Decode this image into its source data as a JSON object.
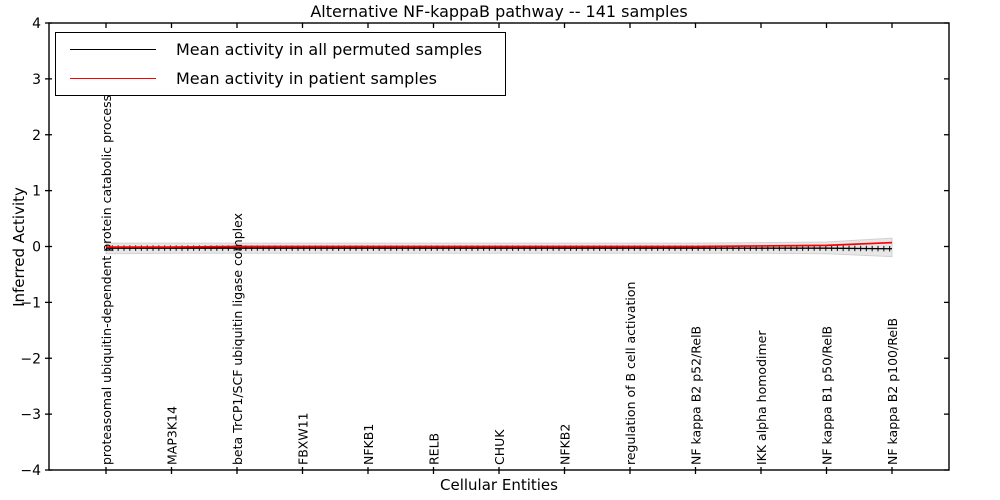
{
  "figure": {
    "background": "#ffffff",
    "axis_color": "#000000"
  },
  "legend": {
    "position": "upper left",
    "items": [
      {
        "label": "Mean activity in all permuted samples",
        "color": "#000000"
      },
      {
        "label": "Mean activity in patient samples",
        "color": "#ff0000"
      }
    ]
  },
  "chart_data": {
    "type": "line",
    "title": "Alternative NF-kappaB pathway -- 141 samples",
    "xlabel": "Cellular Entities",
    "ylabel": "Inferred Activity",
    "ylim": [
      -4,
      4
    ],
    "ytick_values": [
      4,
      3,
      2,
      1,
      0,
      -1,
      -2,
      -3,
      -4
    ],
    "ytick_labels": [
      "4",
      "3",
      "2",
      "1",
      "0",
      "−1",
      "−2",
      "−3",
      "−4"
    ],
    "grid": false,
    "legend_position": "upper left",
    "categories": [
      "proteasomal ubiquitin-dependent protein catabolic process",
      "MAP3K14",
      "beta TrCP1/SCF ubiquitin ligase complex",
      "FBXW11",
      "NFKB1",
      "RELB",
      "CHUK",
      "NFKB2",
      "regulation of B cell activation",
      "NF kappa B2 p52/RelB",
      "IKK alpha homodimer",
      "NF kappa B1 p50/RelB",
      "NF kappa B2 p100/RelB"
    ],
    "series": [
      {
        "name": "Mean activity in all permuted samples",
        "color": "#000000",
        "style": "solid-with-errorbar-caps",
        "values": [
          -0.03,
          -0.03,
          -0.03,
          -0.03,
          -0.03,
          -0.03,
          -0.03,
          -0.03,
          -0.03,
          -0.03,
          -0.03,
          -0.03,
          -0.04
        ]
      },
      {
        "name": "Mean activity in patient samples",
        "color": "#ff0000",
        "style": "solid",
        "values": [
          -0.01,
          -0.01,
          0.0,
          0.0,
          0.0,
          0.0,
          0.0,
          0.0,
          0.0,
          0.0,
          0.01,
          0.02,
          0.07
        ]
      }
    ],
    "band": {
      "name": "permuted-samples-spread",
      "fill_color": "#e7e7e7",
      "edge_color": "#d2d2d2",
      "upper": [
        0.06,
        0.06,
        0.06,
        0.06,
        0.06,
        0.06,
        0.06,
        0.06,
        0.06,
        0.06,
        0.07,
        0.08,
        0.15
      ],
      "lower": [
        -0.13,
        -0.12,
        -0.12,
        -0.12,
        -0.12,
        -0.12,
        -0.12,
        -0.12,
        -0.12,
        -0.12,
        -0.12,
        -0.13,
        -0.18
      ]
    }
  }
}
